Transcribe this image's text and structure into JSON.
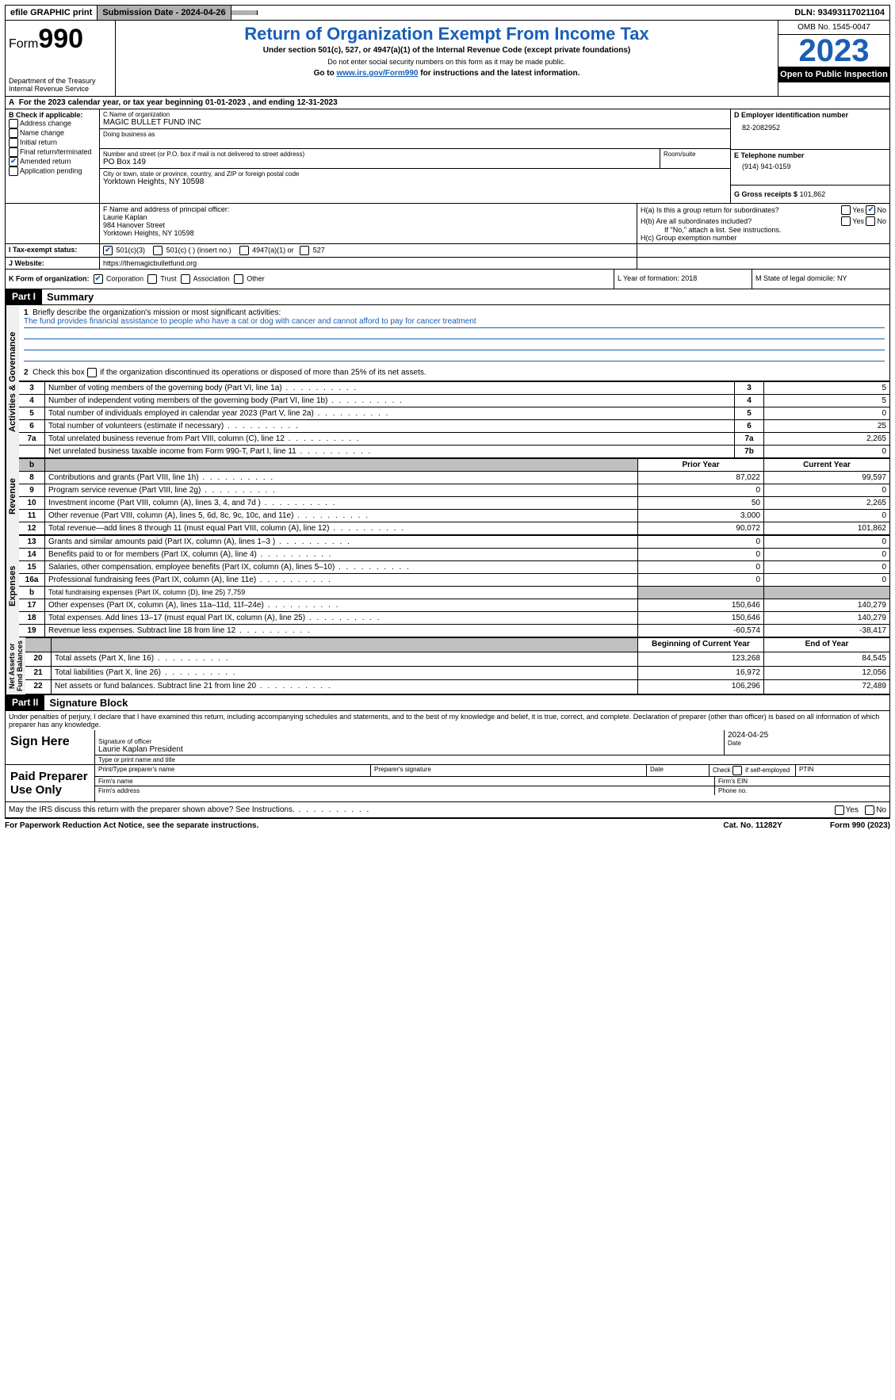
{
  "topbar": {
    "efile": "efile GRAPHIC print",
    "submission": "Submission Date - 2024-04-26",
    "dln_label": "DLN:",
    "dln": "93493117021104"
  },
  "header": {
    "form_prefix": "Form",
    "form_number": "990",
    "dept": "Department of the Treasury Internal Revenue Service",
    "title": "Return of Organization Exempt From Income Tax",
    "subtitle1": "Under section 501(c), 527, or 4947(a)(1) of the Internal Revenue Code (except private foundations)",
    "subtitle2": "Do not enter social security numbers on this form as it may be made public.",
    "subtitle3_prefix": "Go to ",
    "subtitle3_link": "www.irs.gov/Form990",
    "subtitle3_suffix": " for instructions and the latest information.",
    "omb": "OMB No. 1545-0047",
    "year": "2023",
    "open": "Open to Public Inspection"
  },
  "periodA": "For the 2023 calendar year, or tax year beginning 01-01-2023   , and ending 12-31-2023",
  "boxB": {
    "label": "B Check if applicable:",
    "addr": "Address change",
    "name": "Name change",
    "initial": "Initial return",
    "final": "Final return/terminated",
    "amended": "Amended return",
    "app": "Application pending"
  },
  "boxC": {
    "name_lbl": "C Name of organization",
    "name": "MAGIC BULLET FUND INC",
    "dba_lbl": "Doing business as",
    "street_lbl": "Number and street (or P.O. box if mail is not delivered to street address)",
    "street": "PO Box 149",
    "room_lbl": "Room/suite",
    "city_lbl": "City or town, state or province, country, and ZIP or foreign postal code",
    "city": "Yorktown Heights, NY   10598"
  },
  "boxD": {
    "lbl": "D Employer identification number",
    "val": "82-2082952"
  },
  "boxE": {
    "lbl": "E Telephone number",
    "val": "(914) 941-0159"
  },
  "boxG": {
    "lbl": "G Gross receipts $",
    "val": "101,862"
  },
  "boxF": {
    "lbl": "F  Name and address of principal officer:",
    "name": "Laurie Kaplan",
    "addr1": "984 Hanover Street",
    "addr2": "Yorktown Heights, NY  10598"
  },
  "boxH": {
    "a": "H(a)  Is this a group return for subordinates?",
    "b": "H(b)  Are all subordinates included?",
    "b_note": "If \"No,\" attach a list. See instructions.",
    "c": "H(c)  Group exemption number"
  },
  "boxI": {
    "lbl": "I   Tax-exempt status:",
    "o1": "501(c)(3)",
    "o2": "501(c) (  ) (insert no.)",
    "o3": "4947(a)(1) or",
    "o4": "527"
  },
  "boxJ": {
    "lbl": "J   Website:",
    "val": "https://themagicbulletfund.org"
  },
  "boxK": {
    "lbl": "K Form of organization:",
    "o1": "Corporation",
    "o2": "Trust",
    "o3": "Association",
    "o4": "Other"
  },
  "boxL": "L Year of formation: 2018",
  "boxM": "M State of legal domicile: NY",
  "part1": {
    "header": "Part I",
    "title": "Summary",
    "l1": "Briefly describe the organization's mission or most significant activities:",
    "mission": "The fund provides financial assistance to people who have a cat or dog with cancer and cannot afford to pay for cancer treatment",
    "l2": "Check this box         if the organization discontinued its operations or disposed of more than 25% of its net assets.",
    "rows_gov": [
      {
        "n": "3",
        "d": "Number of voting members of the governing body (Part VI, line 1a)",
        "b": "3",
        "v": "5"
      },
      {
        "n": "4",
        "d": "Number of independent voting members of the governing body (Part VI, line 1b)",
        "b": "4",
        "v": "5"
      },
      {
        "n": "5",
        "d": "Total number of individuals employed in calendar year 2023 (Part V, line 2a)",
        "b": "5",
        "v": "0"
      },
      {
        "n": "6",
        "d": "Total number of volunteers (estimate if necessary)",
        "b": "6",
        "v": "25"
      },
      {
        "n": "7a",
        "d": "Total unrelated business revenue from Part VIII, column (C), line 12",
        "b": "7a",
        "v": "2,265"
      },
      {
        "n": "",
        "d": "Net unrelated business taxable income from Form 990-T, Part I, line 11",
        "b": "7b",
        "v": "0"
      }
    ],
    "hdr_prior": "Prior Year",
    "hdr_curr": "Current Year",
    "rows_rev": [
      {
        "n": "8",
        "d": "Contributions and grants (Part VIII, line 1h)",
        "p": "87,022",
        "c": "99,597"
      },
      {
        "n": "9",
        "d": "Program service revenue (Part VIII, line 2g)",
        "p": "0",
        "c": "0"
      },
      {
        "n": "10",
        "d": "Investment income (Part VIII, column (A), lines 3, 4, and 7d )",
        "p": "50",
        "c": "2,265"
      },
      {
        "n": "11",
        "d": "Other revenue (Part VIII, column (A), lines 5, 6d, 8c, 9c, 10c, and 11e)",
        "p": "3,000",
        "c": "0"
      },
      {
        "n": "12",
        "d": "Total revenue—add lines 8 through 11 (must equal Part VIII, column (A), line 12)",
        "p": "90,072",
        "c": "101,862"
      }
    ],
    "rows_exp": [
      {
        "n": "13",
        "d": "Grants and similar amounts paid (Part IX, column (A), lines 1–3 )",
        "p": "0",
        "c": "0"
      },
      {
        "n": "14",
        "d": "Benefits paid to or for members (Part IX, column (A), line 4)",
        "p": "0",
        "c": "0"
      },
      {
        "n": "15",
        "d": "Salaries, other compensation, employee benefits (Part IX, column (A), lines 5–10)",
        "p": "0",
        "c": "0"
      },
      {
        "n": "16a",
        "d": "Professional fundraising fees (Part IX, column (A), line 11e)",
        "p": "0",
        "c": "0"
      }
    ],
    "l16b": "Total fundraising expenses (Part IX, column (D), line 25) 7,759",
    "rows_exp2": [
      {
        "n": "17",
        "d": "Other expenses (Part IX, column (A), lines 11a–11d, 11f–24e)",
        "p": "150,646",
        "c": "140,279"
      },
      {
        "n": "18",
        "d": "Total expenses. Add lines 13–17 (must equal Part IX, column (A), line 25)",
        "p": "150,646",
        "c": "140,279"
      },
      {
        "n": "19",
        "d": "Revenue less expenses. Subtract line 18 from line 12",
        "p": "-60,574",
        "c": "-38,417"
      }
    ],
    "hdr_beg": "Beginning of Current Year",
    "hdr_end": "End of Year",
    "rows_net": [
      {
        "n": "20",
        "d": "Total assets (Part X, line 16)",
        "p": "123,268",
        "c": "84,545"
      },
      {
        "n": "21",
        "d": "Total liabilities (Part X, line 26)",
        "p": "16,972",
        "c": "12,056"
      },
      {
        "n": "22",
        "d": "Net assets or fund balances. Subtract line 21 from line 20",
        "p": "106,296",
        "c": "72,489"
      }
    ]
  },
  "part2": {
    "header": "Part II",
    "title": "Signature Block",
    "declaration": "Under penalties of perjury, I declare that I have examined this return, including accompanying schedules and statements, and to the best of my knowledge and belief, it is true, correct, and complete. Declaration of preparer (other than officer) is based on all information of which preparer has any knowledge.",
    "sign_here": "Sign Here",
    "sig_officer": "Signature of officer",
    "sig_name": "Laurie Kaplan President",
    "sig_type": "Type or print name and title",
    "sig_date_lbl": "Date",
    "sig_date": "2024-04-25",
    "paid": "Paid Preparer Use Only",
    "prep_name": "Print/Type preparer's name",
    "prep_sig": "Preparer's signature",
    "prep_date": "Date",
    "prep_check": "Check         if self-employed",
    "prep_ptin": "PTIN",
    "firm_name": "Firm's name",
    "firm_ein": "Firm's EIN",
    "firm_addr": "Firm's address",
    "firm_phone": "Phone no.",
    "may_irs": "May the IRS discuss this return with the preparer shown above? See Instructions."
  },
  "footer": {
    "pra": "For Paperwork Reduction Act Notice, see the separate instructions.",
    "cat": "Cat. No. 11282Y",
    "form": "Form 990 (2023)"
  },
  "yn": {
    "yes": "Yes",
    "no": "No"
  }
}
